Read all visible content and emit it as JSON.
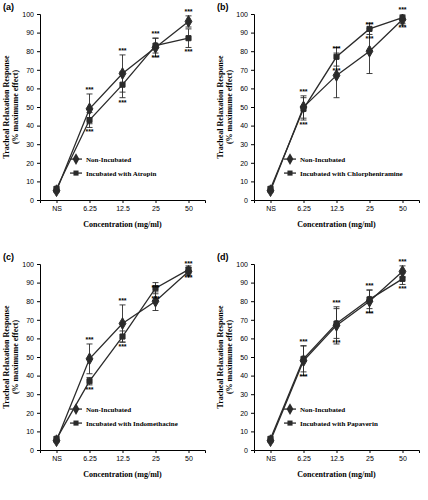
{
  "chart_data": [
    {
      "type": "line",
      "title": "(a)",
      "x_label": "Concentration (mg/ml)",
      "y_label": "Tracheal Relaxation Response\n(% maximume effect)",
      "categories": [
        "NS",
        "6.25",
        "12.5",
        "25",
        "50"
      ],
      "ylim": [
        0,
        100
      ],
      "yticks": [
        0,
        10,
        20,
        30,
        40,
        50,
        60,
        70,
        80,
        90,
        100
      ],
      "series": [
        {
          "name": "Non-Incubated",
          "color": "#2b2b2b",
          "marker": "diamond",
          "line_style": "solid",
          "values": [
            5,
            49,
            68,
            82,
            96
          ],
          "errors": [
            1,
            8,
            10,
            5,
            3
          ],
          "significance": [
            null,
            "***",
            "***",
            "***",
            "***"
          ]
        },
        {
          "name": "Incubated with Atropin",
          "color": "#2b2b2b",
          "marker": "square",
          "line_style": "solid",
          "values": [
            6,
            43,
            62,
            83,
            87
          ],
          "errors": [
            1,
            4,
            7,
            4,
            5
          ],
          "significance": [
            null,
            "***",
            "***",
            "***",
            "***"
          ]
        }
      ]
    },
    {
      "type": "line",
      "title": "(b)",
      "x_label": "Concentration (mg/ml)",
      "y_label": "Tracheal Relaxation Response\n(% maximume effect)",
      "categories": [
        "NS",
        "6.25",
        "12.5",
        "25",
        "50"
      ],
      "ylim": [
        0,
        100
      ],
      "yticks": [
        0,
        10,
        20,
        30,
        40,
        50,
        60,
        70,
        80,
        90,
        100
      ],
      "series": [
        {
          "name": "Non-Incubated",
          "color": "#2b2b2b",
          "marker": "diamond",
          "line_style": "solid",
          "values": [
            5,
            50,
            67,
            80,
            97
          ],
          "errors": [
            1,
            6,
            12,
            12,
            3
          ],
          "significance": [
            null,
            "***",
            "***",
            "***",
            "***"
          ]
        },
        {
          "name": "Incubated with Chlorpheniramine",
          "color": "#2b2b2b",
          "marker": "square",
          "line_style": "solid",
          "values": [
            6,
            49,
            77,
            92,
            98
          ],
          "errors": [
            1,
            6,
            5,
            3,
            3
          ],
          "significance": [
            null,
            "***",
            "***",
            "***",
            "***"
          ]
        }
      ]
    },
    {
      "type": "line",
      "title": "(c)",
      "x_label": "Concentration (mg/ml)",
      "y_label": "Tracheal Relaxation Response\n(% maximume effect)",
      "categories": [
        "NS",
        "6.25",
        "12.5",
        "25",
        "50"
      ],
      "ylim": [
        0,
        100
      ],
      "yticks": [
        0,
        10,
        20,
        30,
        40,
        50,
        60,
        70,
        80,
        90,
        100
      ],
      "series": [
        {
          "name": "Non-Incubated",
          "color": "#2b2b2b",
          "marker": "diamond",
          "line_style": "solid",
          "values": [
            5,
            49,
            68,
            80,
            96
          ],
          "errors": [
            1,
            8,
            10,
            5,
            2
          ],
          "significance": [
            null,
            "***",
            "***",
            "***",
            "***"
          ]
        },
        {
          "name": "Incubated with Indomethacine",
          "color": "#2b2b2b",
          "marker": "square",
          "line_style": "solid",
          "values": [
            6,
            37,
            61,
            87,
            97
          ],
          "errors": [
            1,
            2,
            3,
            3,
            2
          ],
          "significance": [
            null,
            "***",
            "***",
            "***",
            "***"
          ]
        }
      ]
    },
    {
      "type": "line",
      "title": "(d)",
      "x_label": "Concentration (mg/ml)",
      "y_label": "Tracheal Relaxation Response\n(% maximume effect)",
      "categories": [
        "NS",
        "6.25",
        "12.5",
        "25",
        "50"
      ],
      "ylim": [
        0,
        100
      ],
      "yticks": [
        0,
        10,
        20,
        30,
        40,
        50,
        60,
        70,
        80,
        90,
        100
      ],
      "series": [
        {
          "name": "Non-Incubated",
          "color": "#2b2b2b",
          "marker": "diamond",
          "line_style": "solid",
          "values": [
            5,
            48,
            67,
            80,
            96
          ],
          "errors": [
            1,
            8,
            10,
            6,
            3
          ],
          "significance": [
            null,
            "***",
            "***",
            "***",
            "***"
          ]
        },
        {
          "name": "Incubated with Papaverin",
          "color": "#2b2b2b",
          "marker": "square",
          "line_style": "solid",
          "values": [
            6,
            49,
            68,
            81,
            92
          ],
          "errors": [
            1,
            7,
            8,
            5,
            3
          ],
          "significance": [
            null,
            "***",
            "***",
            "***",
            "***"
          ]
        }
      ]
    }
  ]
}
